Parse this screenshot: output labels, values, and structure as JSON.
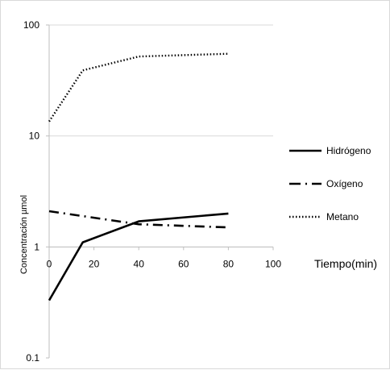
{
  "chart_data": {
    "type": "line",
    "title": "",
    "xlabel": "Tiempo(min)",
    "ylabel": "Concentración  µmol",
    "yscale": "log",
    "ylim": [
      0.1,
      100
    ],
    "xlim": [
      0,
      100
    ],
    "x_ticks": [
      "0",
      "20",
      "40",
      "60",
      "80",
      "100"
    ],
    "y_ticks": [
      "0.1",
      "1",
      "10",
      "100"
    ],
    "grid": "horizontal gridlines at 1, 10, 100",
    "legend_position": "right",
    "series": [
      {
        "name": "Hidrógeno",
        "style": "solid",
        "x": [
          0,
          15,
          40,
          80
        ],
        "y": [
          0.33,
          1.1,
          1.7,
          2.0
        ]
      },
      {
        "name": "Oxígeno",
        "style": "dash-dot",
        "x": [
          0,
          40,
          80
        ],
        "y": [
          2.1,
          1.6,
          1.5
        ]
      },
      {
        "name": "Metano",
        "style": "dotted",
        "x": [
          0,
          15,
          40,
          80
        ],
        "y": [
          13.5,
          39,
          52,
          55
        ]
      }
    ]
  }
}
